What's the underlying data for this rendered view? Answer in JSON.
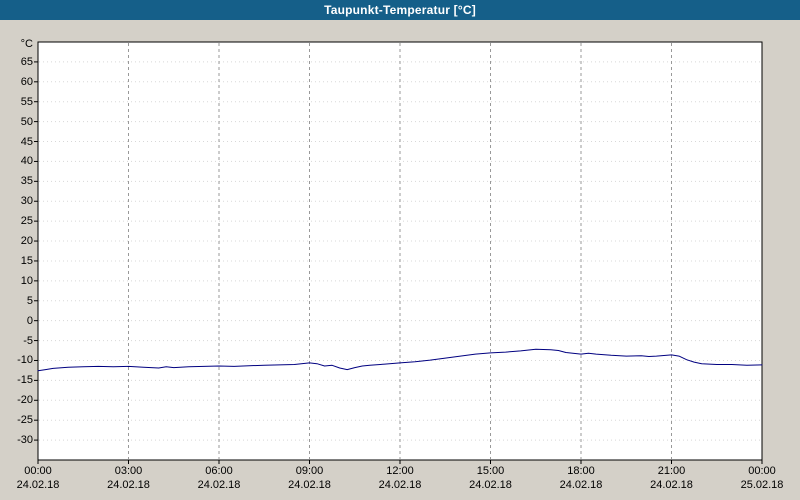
{
  "window": {
    "title": "Taupunkt-Temperatur [°C]"
  },
  "colors": {
    "titlebar": "#155f89",
    "titlebar_text": "#ffffff",
    "background": "#d4d0c8",
    "plot_background": "#ffffff",
    "plot_border": "#000000",
    "grid_vertical": "#999999",
    "grid_horizontal": "#d8d8d8",
    "tick": "#000000",
    "line": "#000080"
  },
  "chart_data": {
    "type": "line",
    "title": "Taupunkt-Temperatur [°C]",
    "xlabel": "",
    "ylabel": "°C",
    "ylim": [
      -35,
      70
    ],
    "xlim_hours": [
      0,
      24
    ],
    "grid": true,
    "legend_position": "none",
    "yticks": [
      65,
      60,
      55,
      50,
      45,
      40,
      35,
      30,
      25,
      20,
      15,
      10,
      5,
      0,
      -5,
      -10,
      -15,
      -20,
      -25,
      -30
    ],
    "xticks": [
      {
        "hour": 0,
        "time": "00:00",
        "date": "24.02.18"
      },
      {
        "hour": 3,
        "time": "03:00",
        "date": "24.02.18"
      },
      {
        "hour": 6,
        "time": "06:00",
        "date": "24.02.18"
      },
      {
        "hour": 9,
        "time": "09:00",
        "date": "24.02.18"
      },
      {
        "hour": 12,
        "time": "12:00",
        "date": "24.02.18"
      },
      {
        "hour": 15,
        "time": "15:00",
        "date": "24.02.18"
      },
      {
        "hour": 18,
        "time": "18:00",
        "date": "24.02.18"
      },
      {
        "hour": 21,
        "time": "21:00",
        "date": "24.02.18"
      },
      {
        "hour": 24,
        "time": "00:00",
        "date": "25.02.18"
      }
    ],
    "series": [
      {
        "name": "Taupunkt-Temperatur",
        "color": "#000080",
        "x_hours": [
          0,
          0.25,
          0.5,
          1,
          1.5,
          2,
          2.5,
          3,
          3.5,
          4,
          4.25,
          4.5,
          5,
          5.5,
          6,
          6.5,
          7,
          7.5,
          8,
          8.5,
          9,
          9.25,
          9.5,
          9.75,
          10,
          10.25,
          10.5,
          10.75,
          11,
          11.5,
          12,
          12.5,
          13,
          13.5,
          14,
          14.5,
          15,
          15.5,
          16,
          16.5,
          17,
          17.25,
          17.5,
          18,
          18.25,
          18.5,
          19,
          19.5,
          20,
          20.25,
          20.5,
          21,
          21.25,
          21.5,
          21.75,
          22,
          22.5,
          23,
          23.5,
          24
        ],
        "values": [
          -12.6,
          -12.3,
          -12.0,
          -11.7,
          -11.6,
          -11.5,
          -11.6,
          -11.5,
          -11.7,
          -11.9,
          -11.6,
          -11.8,
          -11.6,
          -11.5,
          -11.4,
          -11.5,
          -11.3,
          -11.2,
          -11.1,
          -11.0,
          -10.6,
          -10.8,
          -11.4,
          -11.2,
          -11.9,
          -12.3,
          -11.8,
          -11.4,
          -11.2,
          -10.9,
          -10.6,
          -10.3,
          -9.9,
          -9.4,
          -8.9,
          -8.4,
          -8.1,
          -7.9,
          -7.6,
          -7.2,
          -7.3,
          -7.5,
          -8.0,
          -8.4,
          -8.2,
          -8.4,
          -8.7,
          -8.9,
          -8.8,
          -9.0,
          -8.9,
          -8.6,
          -8.9,
          -9.8,
          -10.4,
          -10.8,
          -11.0,
          -11.0,
          -11.2,
          -11.1
        ]
      }
    ]
  }
}
